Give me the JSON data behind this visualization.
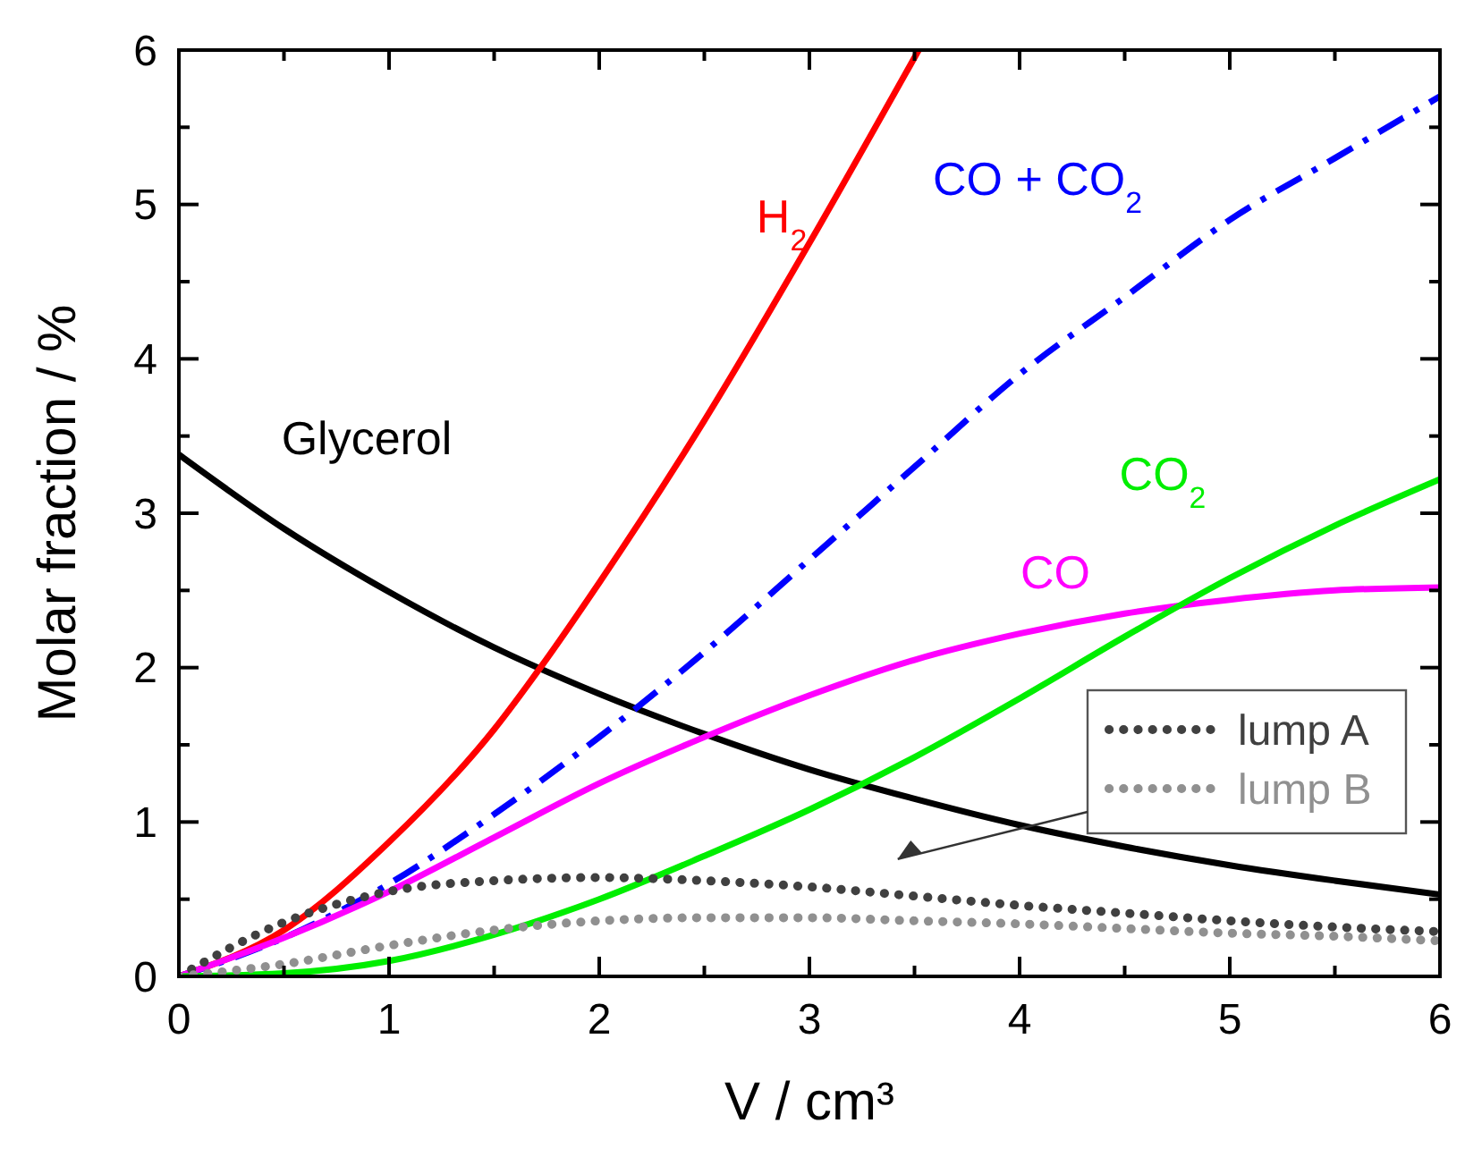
{
  "chart_data": {
    "type": "line",
    "xlabel": "V / cm³",
    "ylabel": "Molar fraction / %",
    "xlim": [
      0,
      6
    ],
    "ylim": [
      0,
      6
    ],
    "xticks": [
      0,
      {
        "value": 0.5,
        "label": null
      },
      1,
      {
        "value": 1.5,
        "label": null
      },
      2,
      {
        "value": 2.5,
        "label": null
      },
      3,
      {
        "value": 3.5,
        "label": null
      },
      4,
      {
        "value": 4.5,
        "label": null
      },
      5,
      {
        "value": 5.5,
        "label": null
      },
      6
    ],
    "yticks": [
      0,
      {
        "value": 0.5,
        "label": null
      },
      1,
      {
        "value": 1.5,
        "label": null
      },
      2,
      {
        "value": 2.5,
        "label": null
      },
      3,
      {
        "value": 3.5,
        "label": null
      },
      4,
      {
        "value": 4.5,
        "label": null
      },
      5,
      {
        "value": 5.5,
        "label": null
      },
      6
    ],
    "grid": false,
    "legend": "right",
    "marker": "none",
    "series": [
      {
        "name": "Glycerol",
        "color": "#000000",
        "line_style": "solid",
        "x": [
          0,
          0.5,
          1,
          1.5,
          2,
          2.5,
          3,
          3.5,
          4,
          4.5,
          5,
          5.5,
          6
        ],
        "values": [
          3.38,
          2.9,
          2.49,
          2.13,
          1.83,
          1.57,
          1.34,
          1.15,
          0.98,
          0.84,
          0.72,
          0.62,
          0.53
        ]
      },
      {
        "name": "H$_{2}$",
        "color": "#ff0000",
        "line_style": "solid",
        "x": [
          0,
          0.5,
          1,
          1.5,
          1.72,
          2,
          2.5,
          3,
          3.52
        ],
        "values": [
          0,
          0.3,
          0.87,
          1.6,
          2.0,
          2.55,
          3.6,
          4.75,
          6
        ]
      },
      {
        "name": "CO + CO$_{2}$",
        "color": "#0000ff",
        "line_style": "dashdot",
        "x": [
          0,
          0.5,
          1,
          1.5,
          2,
          2.5,
          3,
          3.5,
          4,
          4.5,
          5,
          5.5,
          6
        ],
        "values": [
          0,
          0.25,
          0.6,
          1.05,
          1.55,
          2.1,
          2.7,
          3.3,
          3.9,
          4.4,
          4.9,
          5.3,
          5.7
        ]
      },
      {
        "name": "CO",
        "color": "#ff00ff",
        "line_style": "solid",
        "x": [
          0,
          0.5,
          1,
          1.5,
          2,
          2.5,
          3,
          3.5,
          4,
          4.5,
          5,
          5.5,
          6
        ],
        "values": [
          0,
          0.25,
          0.55,
          0.9,
          1.25,
          1.55,
          1.82,
          2.05,
          2.22,
          2.35,
          2.44,
          2.5,
          2.52
        ]
      },
      {
        "name": "CO$_{2}$",
        "color": "#00ee00",
        "line_style": "solid",
        "x": [
          0,
          0.5,
          1,
          1.5,
          2,
          2.5,
          3,
          3.5,
          4,
          4.5,
          5,
          5.5,
          6
        ],
        "values": [
          0,
          0.02,
          0.1,
          0.27,
          0.5,
          0.78,
          1.08,
          1.42,
          1.8,
          2.2,
          2.58,
          2.92,
          3.22
        ]
      },
      {
        "name": "lump A",
        "color": "#404040",
        "line_style": "dotted",
        "x": [
          0,
          0.5,
          1,
          1.5,
          2,
          2.5,
          3,
          3.5,
          4,
          4.5,
          5,
          5.5,
          6
        ],
        "values": [
          0,
          0.35,
          0.55,
          0.62,
          0.64,
          0.62,
          0.58,
          0.52,
          0.46,
          0.41,
          0.36,
          0.32,
          0.29
        ]
      },
      {
        "name": "lump B",
        "color": "#909090",
        "line_style": "dotted",
        "x": [
          0,
          0.5,
          1,
          1.5,
          2,
          2.5,
          3,
          3.5,
          4,
          4.5,
          5,
          5.5,
          6
        ],
        "values": [
          0,
          0.08,
          0.2,
          0.3,
          0.36,
          0.38,
          0.38,
          0.36,
          0.34,
          0.31,
          0.28,
          0.26,
          0.23
        ]
      }
    ]
  }
}
